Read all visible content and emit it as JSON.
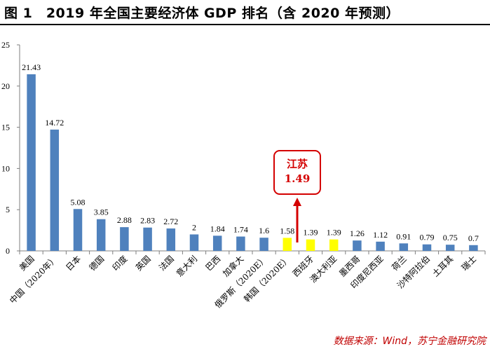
{
  "header": {
    "title": "图 1　2019 年全国主要经济体 GDP 排名（含 2020 年预测）"
  },
  "callout": {
    "name": "江苏",
    "value": "1.49"
  },
  "source_note": "数据来源：Wind，苏宁金融研究院",
  "colors": {
    "bar_default": "#4f81bd",
    "bar_highlight": "#ffff00",
    "callout": "#d40000",
    "source_text": "#c00000"
  },
  "chart_data": {
    "type": "bar",
    "ylim": [
      0,
      25
    ],
    "yticks": [
      0,
      5,
      10,
      15,
      20,
      25
    ],
    "grid": false,
    "categories": [
      "美国",
      "中国（2020年）",
      "日本",
      "德国",
      "印度",
      "英国",
      "法国",
      "意大利",
      "巴西",
      "加拿大",
      "俄罗斯（2020E）",
      "韩国（2020E）",
      "西班牙",
      "澳大利亚",
      "墨西哥",
      "印度尼西亚",
      "荷兰",
      "沙特阿拉伯",
      "土耳其",
      "瑞士"
    ],
    "values": [
      21.43,
      14.72,
      5.08,
      3.85,
      2.88,
      2.83,
      2.72,
      2,
      1.84,
      1.74,
      1.6,
      1.58,
      1.39,
      1.39,
      1.26,
      1.12,
      0.91,
      0.79,
      0.75,
      0.7
    ],
    "value_labels": [
      "21.43",
      "14.72",
      "5.08",
      "3.85",
      "2.88",
      "2.83",
      "2.72",
      "2",
      "1.84",
      "1.74",
      "1.6",
      "1.58",
      "1.39",
      "1.39",
      "1.26",
      "1.12",
      "0.91",
      "0.79",
      "0.75",
      "0.7"
    ],
    "highlighted": [
      "韩国（2020E）",
      "西班牙",
      "澳大利亚"
    ]
  }
}
